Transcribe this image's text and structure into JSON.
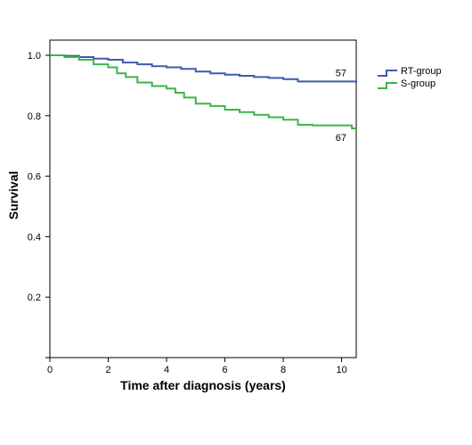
{
  "chart_data": {
    "type": "line",
    "xlabel": "Time after diagnosis (years)",
    "ylabel": "Survival",
    "xlim": [
      0,
      10.5
    ],
    "ylim": [
      0,
      1.05
    ],
    "xticks": [
      0,
      2,
      4,
      6,
      8,
      10
    ],
    "yticks": [
      0.2,
      0.4,
      0.6,
      0.8,
      1.0
    ],
    "xtick_labels": [
      "0",
      "2",
      "4",
      "6",
      "8",
      "10"
    ],
    "ytick_labels": [
      "0.2",
      "0.4",
      "0.6",
      "0.8",
      "1.0"
    ],
    "step": true,
    "grid": false,
    "legend_position": "right, outside plot",
    "series": [
      {
        "name": "RT-group",
        "color": "#3f5bb0",
        "x": [
          0,
          0.5,
          1.0,
          1.5,
          2.0,
          2.5,
          3.0,
          3.5,
          4.0,
          4.5,
          5.0,
          5.5,
          6.0,
          6.5,
          7.0,
          7.5,
          8.0,
          8.5,
          9.0,
          9.5,
          10.0,
          10.5
        ],
        "y": [
          1.0,
          0.998,
          0.994,
          0.989,
          0.985,
          0.976,
          0.97,
          0.964,
          0.96,
          0.955,
          0.946,
          0.94,
          0.936,
          0.932,
          0.928,
          0.925,
          0.921,
          0.913,
          0.913,
          0.913,
          0.913,
          0.907
        ],
        "end_label": "57"
      },
      {
        "name": "S-group",
        "color": "#3cb54a",
        "x": [
          0,
          0.5,
          1.0,
          1.5,
          2.0,
          2.3,
          2.6,
          3.0,
          3.5,
          4.0,
          4.3,
          4.6,
          5.0,
          5.5,
          6.0,
          6.5,
          7.0,
          7.5,
          8.0,
          8.5,
          9.0,
          9.5,
          10.0,
          10.35,
          10.5
        ],
        "y": [
          1.0,
          0.994,
          0.985,
          0.97,
          0.96,
          0.94,
          0.928,
          0.91,
          0.898,
          0.89,
          0.876,
          0.86,
          0.84,
          0.832,
          0.82,
          0.812,
          0.803,
          0.795,
          0.787,
          0.77,
          0.768,
          0.768,
          0.768,
          0.758,
          0.758
        ],
        "end_label": "67"
      }
    ]
  }
}
